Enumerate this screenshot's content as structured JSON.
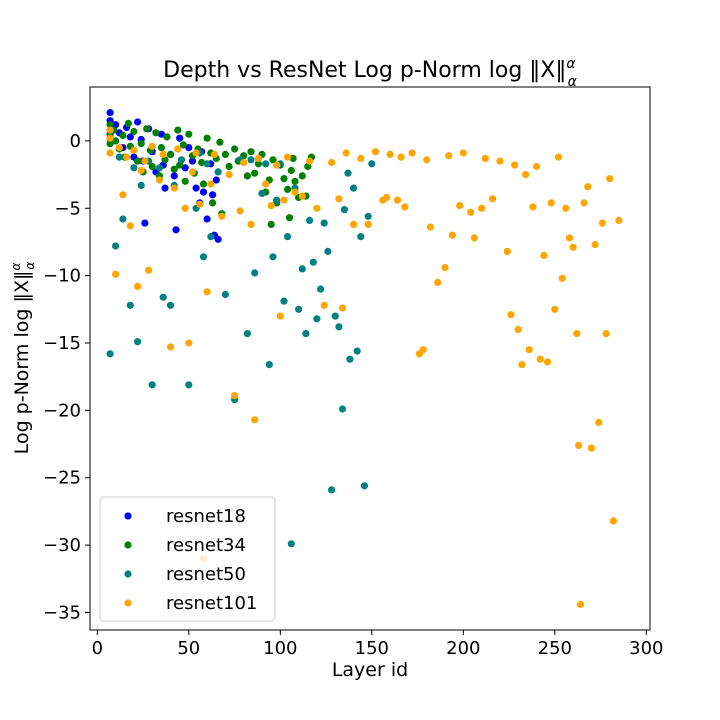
{
  "chart_data": {
    "type": "scatter",
    "title": "Depth vs ResNet Log p-Norm log ‖X‖",
    "title_sup": "α",
    "title_sub": "α",
    "xlabel": "Layer id",
    "ylabel": "Log p-Norm log ‖X‖",
    "ylabel_sup": "α",
    "ylabel_sub": "α",
    "xlim": [
      -4,
      302
    ],
    "ylim": [
      -36.3,
      4
    ],
    "xticks": [
      0,
      50,
      100,
      150,
      200,
      250,
      300
    ],
    "yticks": [
      0,
      -5,
      -10,
      -15,
      -20,
      -25,
      -30,
      -35
    ],
    "grid": false,
    "legend_position": "lower-left",
    "series": [
      {
        "name": "resnet18",
        "color": "#0000ff",
        "points": [
          [
            7,
            2.1
          ],
          [
            7,
            1.5
          ],
          [
            7,
            0.8
          ],
          [
            7,
            0.2
          ],
          [
            10,
            1.2
          ],
          [
            12,
            0.6
          ],
          [
            14,
            -0.5
          ],
          [
            16,
            1.0
          ],
          [
            18,
            0.3
          ],
          [
            20,
            -1.2
          ],
          [
            22,
            1.4
          ],
          [
            24,
            0.1
          ],
          [
            25,
            -1.5
          ],
          [
            26,
            -6.1
          ],
          [
            28,
            0.9
          ],
          [
            30,
            -0.8
          ],
          [
            32,
            -2.3
          ],
          [
            35,
            0.5
          ],
          [
            36,
            -1.8
          ],
          [
            37,
            -3.5
          ],
          [
            40,
            -1.0
          ],
          [
            42,
            -2.6
          ],
          [
            43,
            -6.6
          ],
          [
            45,
            0.2
          ],
          [
            48,
            -2.0
          ],
          [
            50,
            -0.5
          ],
          [
            52,
            -1.5
          ],
          [
            54,
            -3.5
          ],
          [
            56,
            -4.6
          ],
          [
            57,
            -0.8
          ],
          [
            58,
            -3.8
          ],
          [
            60,
            -5.8
          ],
          [
            62,
            -1.7
          ],
          [
            63,
            -4.0
          ],
          [
            64,
            -7.0
          ],
          [
            65,
            -2.9
          ],
          [
            66,
            -7.3
          ]
        ]
      },
      {
        "name": "resnet34",
        "color": "#008000",
        "points": [
          [
            7,
            1.2
          ],
          [
            7,
            0.5
          ],
          [
            7,
            -0.2
          ],
          [
            9,
            0.8
          ],
          [
            10,
            0.0
          ],
          [
            12,
            -0.6
          ],
          [
            14,
            0.4
          ],
          [
            15,
            -1.2
          ],
          [
            17,
            1.3
          ],
          [
            18,
            -0.4
          ],
          [
            20,
            0.7
          ],
          [
            22,
            -1.5
          ],
          [
            24,
            -0.2
          ],
          [
            25,
            -2.3
          ],
          [
            27,
            0.9
          ],
          [
            29,
            -0.7
          ],
          [
            30,
            -1.9
          ],
          [
            32,
            0.6
          ],
          [
            34,
            -2.6
          ],
          [
            35,
            -0.5
          ],
          [
            37,
            -1.4
          ],
          [
            38,
            0.3
          ],
          [
            40,
            -1.0
          ],
          [
            42,
            -2.1
          ],
          [
            44,
            0.8
          ],
          [
            45,
            -1.8
          ],
          [
            47,
            -0.3
          ],
          [
            48,
            -3.0
          ],
          [
            50,
            0.5
          ],
          [
            52,
            -1.1
          ],
          [
            53,
            -2.4
          ],
          [
            55,
            -0.6
          ],
          [
            57,
            -1.6
          ],
          [
            58,
            -3.2
          ],
          [
            60,
            0.2
          ],
          [
            62,
            -0.9
          ],
          [
            63,
            -4.6
          ],
          [
            65,
            -1.3
          ],
          [
            67,
            -0.1
          ],
          [
            68,
            -5.4
          ],
          [
            70,
            -1.0
          ],
          [
            72,
            -1.9
          ],
          [
            75,
            -0.6
          ],
          [
            77,
            -1.5
          ],
          [
            80,
            -1.1
          ],
          [
            82,
            -2.6
          ],
          [
            84,
            -0.8
          ],
          [
            86,
            -2.4
          ],
          [
            88,
            -1.7
          ],
          [
            90,
            -1.0
          ],
          [
            92,
            -3.8
          ],
          [
            94,
            -2.9
          ],
          [
            95,
            -6.2
          ],
          [
            96,
            -1.4
          ],
          [
            98,
            -4.6
          ],
          [
            100,
            -1.8
          ],
          [
            102,
            -2.8
          ],
          [
            104,
            -3.6
          ],
          [
            105,
            -5.7
          ],
          [
            106,
            -2.2
          ],
          [
            107,
            -1.3
          ],
          [
            108,
            -3.0
          ],
          [
            110,
            -4.2
          ],
          [
            112,
            -2.6
          ],
          [
            114,
            -4.1
          ],
          [
            115,
            -1.9
          ],
          [
            117,
            -1.2
          ]
        ]
      },
      {
        "name": "resnet50",
        "color": "#008080",
        "points": [
          [
            7,
            -15.8
          ],
          [
            10,
            -7.8
          ],
          [
            12,
            -1.2
          ],
          [
            14,
            -5.8
          ],
          [
            18,
            -12.2
          ],
          [
            20,
            -2.0
          ],
          [
            22,
            -14.9
          ],
          [
            24,
            -3.3
          ],
          [
            28,
            -1.5
          ],
          [
            30,
            -18.1
          ],
          [
            34,
            -2.0
          ],
          [
            36,
            -11.6
          ],
          [
            40,
            -12.2
          ],
          [
            42,
            -3.3
          ],
          [
            46,
            -1.4
          ],
          [
            50,
            -18.1
          ],
          [
            54,
            -5.0
          ],
          [
            56,
            -0.9
          ],
          [
            58,
            -8.6
          ],
          [
            60,
            -1.7
          ],
          [
            62,
            -7.1
          ],
          [
            66,
            -2.3
          ],
          [
            70,
            -11.4
          ],
          [
            75,
            -19.2
          ],
          [
            78,
            -1.4
          ],
          [
            82,
            -14.3
          ],
          [
            84,
            -1.4
          ],
          [
            86,
            -9.8
          ],
          [
            90,
            -3.9
          ],
          [
            92,
            -1.7
          ],
          [
            94,
            -16.6
          ],
          [
            96,
            -8.6
          ],
          [
            98,
            -4.4
          ],
          [
            100,
            -1.7
          ],
          [
            102,
            -11.9
          ],
          [
            104,
            -7.1
          ],
          [
            106,
            -29.9
          ],
          [
            108,
            -3.5
          ],
          [
            110,
            -12.5
          ],
          [
            112,
            -9.5
          ],
          [
            114,
            -14.3
          ],
          [
            116,
            -5.9
          ],
          [
            118,
            -9.0
          ],
          [
            120,
            -13.2
          ],
          [
            122,
            -11.0
          ],
          [
            124,
            -6.1
          ],
          [
            126,
            -8.2
          ],
          [
            128,
            -25.9
          ],
          [
            130,
            -13.0
          ],
          [
            132,
            -13.8
          ],
          [
            134,
            -19.9
          ],
          [
            135,
            -5.1
          ],
          [
            137,
            -2.4
          ],
          [
            138,
            -16.2
          ],
          [
            140,
            -3.5
          ],
          [
            142,
            -15.6
          ],
          [
            144,
            -7.1
          ],
          [
            146,
            -25.6
          ],
          [
            148,
            -5.6
          ],
          [
            150,
            -1.7
          ]
        ]
      },
      {
        "name": "resnet101",
        "color": "#ffa500",
        "points": [
          [
            7,
            0.8
          ],
          [
            7,
            0.2
          ],
          [
            7,
            -0.9
          ],
          [
            10,
            -9.9
          ],
          [
            12,
            -0.5
          ],
          [
            14,
            -4.0
          ],
          [
            16,
            -1.2
          ],
          [
            18,
            -6.3
          ],
          [
            20,
            -0.7
          ],
          [
            22,
            -10.8
          ],
          [
            24,
            -2.2
          ],
          [
            26,
            -1.5
          ],
          [
            28,
            -9.6
          ],
          [
            30,
            -0.4
          ],
          [
            34,
            -2.9
          ],
          [
            36,
            -1.0
          ],
          [
            40,
            -15.3
          ],
          [
            42,
            -3.5
          ],
          [
            44,
            -0.6
          ],
          [
            48,
            -5.0
          ],
          [
            50,
            -15.0
          ],
          [
            52,
            -2.3
          ],
          [
            54,
            -0.9
          ],
          [
            56,
            -4.7
          ],
          [
            58,
            -31.0
          ],
          [
            60,
            -11.2
          ],
          [
            62,
            -3.2
          ],
          [
            64,
            -1.0
          ],
          [
            68,
            -5.6
          ],
          [
            72,
            -2.5
          ],
          [
            75,
            -18.9
          ],
          [
            78,
            -5.2
          ],
          [
            80,
            -1.6
          ],
          [
            84,
            -6.2
          ],
          [
            86,
            -20.7
          ],
          [
            88,
            -1.3
          ],
          [
            92,
            -3.2
          ],
          [
            95,
            -4.8
          ],
          [
            98,
            -1.8
          ],
          [
            100,
            -13.0
          ],
          [
            102,
            -4.4
          ],
          [
            104,
            -1.2
          ],
          [
            108,
            -3.8
          ],
          [
            112,
            -4.1
          ],
          [
            116,
            -1.5
          ],
          [
            120,
            -5.0
          ],
          [
            124,
            -12.2
          ],
          [
            128,
            -1.6
          ],
          [
            132,
            -4.3
          ],
          [
            134,
            -12.4
          ],
          [
            136,
            -0.9
          ],
          [
            140,
            -6.2
          ],
          [
            144,
            -1.3
          ],
          [
            148,
            -6.2
          ],
          [
            152,
            -0.8
          ],
          [
            156,
            -4.4
          ],
          [
            158,
            -4.2
          ],
          [
            160,
            -1.0
          ],
          [
            164,
            -4.4
          ],
          [
            166,
            -1.2
          ],
          [
            168,
            -4.9
          ],
          [
            172,
            -0.9
          ],
          [
            176,
            -15.8
          ],
          [
            178,
            -15.5
          ],
          [
            180,
            -1.4
          ],
          [
            182,
            -6.4
          ],
          [
            186,
            -10.5
          ],
          [
            190,
            -9.4
          ],
          [
            192,
            -1.1
          ],
          [
            194,
            -7.0
          ],
          [
            198,
            -4.8
          ],
          [
            200,
            -0.9
          ],
          [
            204,
            -5.3
          ],
          [
            206,
            -7.2
          ],
          [
            210,
            -5.0
          ],
          [
            212,
            -1.3
          ],
          [
            216,
            -4.3
          ],
          [
            220,
            -1.5
          ],
          [
            224,
            -8.2
          ],
          [
            226,
            -12.9
          ],
          [
            228,
            -1.8
          ],
          [
            230,
            -14.0
          ],
          [
            232,
            -16.6
          ],
          [
            234,
            -2.5
          ],
          [
            236,
            -15.5
          ],
          [
            238,
            -4.9
          ],
          [
            240,
            -1.9
          ],
          [
            242,
            -16.2
          ],
          [
            244,
            -8.5
          ],
          [
            246,
            -16.4
          ],
          [
            248,
            -4.6
          ],
          [
            250,
            -12.5
          ],
          [
            252,
            -1.2
          ],
          [
            254,
            -10.2
          ],
          [
            256,
            -5.0
          ],
          [
            258,
            -7.2
          ],
          [
            260,
            -7.9
          ],
          [
            262,
            -14.3
          ],
          [
            263,
            -22.6
          ],
          [
            264,
            -34.4
          ],
          [
            266,
            -4.6
          ],
          [
            268,
            -3.4
          ],
          [
            270,
            -22.8
          ],
          [
            272,
            -7.7
          ],
          [
            274,
            -20.9
          ],
          [
            276,
            -6.1
          ],
          [
            278,
            -14.3
          ],
          [
            280,
            -2.8
          ],
          [
            282,
            -28.2
          ],
          [
            285,
            -5.9
          ]
        ]
      }
    ]
  }
}
